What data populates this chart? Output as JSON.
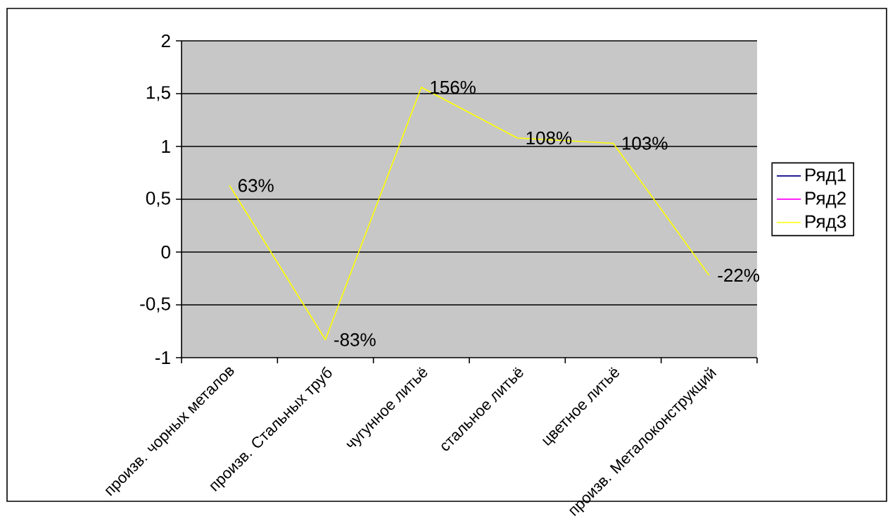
{
  "chart_data": {
    "type": "line",
    "categories": [
      "произв. чорных металов",
      "произв. Стальных труб",
      "чугунное литьё",
      "стальное литьё",
      "цветное литьё",
      "произв. Металоконструкций"
    ],
    "series": [
      {
        "name": "Ряд1",
        "color": "#000080",
        "values": [
          null,
          null,
          null,
          null,
          null,
          null
        ]
      },
      {
        "name": "Ряд2",
        "color": "#ff00ff",
        "values": [
          null,
          null,
          null,
          null,
          null,
          null
        ]
      },
      {
        "name": "Ряд3",
        "color": "#ffff00",
        "values": [
          0.63,
          -0.83,
          1.56,
          1.08,
          1.03,
          -0.22
        ],
        "value_labels": [
          "63%",
          "-83%",
          "156%",
          "108%",
          "103%",
          "-22%"
        ]
      }
    ],
    "ylim": [
      -1,
      2
    ],
    "yticks": [
      -1,
      {
        "value": -0.5,
        "label": "-0,5"
      },
      0,
      {
        "value": 0.5,
        "label": "0,5"
      },
      1,
      {
        "value": 1.5,
        "label": "1,5"
      },
      2
    ],
    "grid": "y",
    "legend": "right",
    "marker": "none",
    "line_style": "solid"
  }
}
